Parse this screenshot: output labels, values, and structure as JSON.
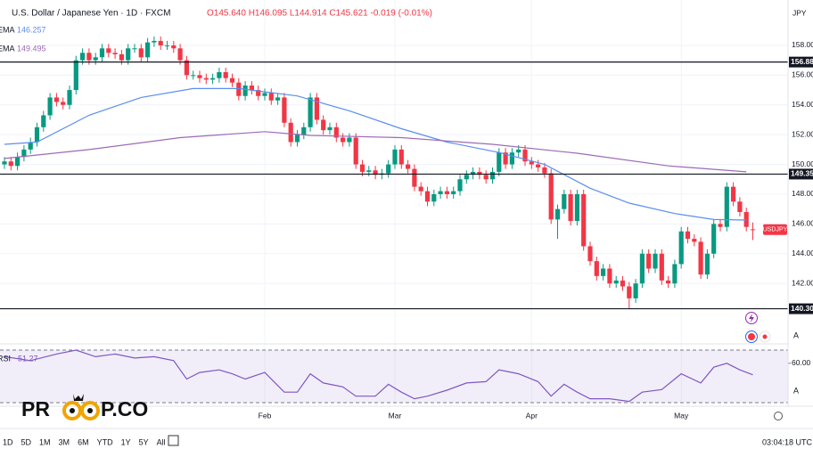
{
  "header": {
    "title": "U.S. Dollar / Japanese Yen · 1D · FXCM",
    "ohlc": "O145.640 H146.095 L144.914 C145.621 -0.019 (-0.01%)",
    "currency": "JPY"
  },
  "logo": {
    "left": "PR",
    "right": "P.CO"
  },
  "auto_label": "A",
  "toolbar": {
    "ranges": [
      "1D",
      "5D",
      "1M",
      "3M",
      "6M",
      "YTD",
      "1Y",
      "5Y",
      "All"
    ],
    "time": "03:04:18 UTC"
  },
  "chart_data": [
    {
      "type": "candlestick",
      "up_color": "#089981",
      "down_color": "#f23645",
      "categories": [
        null,
        null,
        null,
        null,
        null,
        null,
        null,
        null,
        null,
        null,
        null,
        null,
        null,
        null,
        null,
        null,
        null,
        null,
        null,
        null,
        null,
        null,
        null,
        null,
        null,
        null,
        null,
        null,
        null,
        null,
        null,
        null,
        null,
        null,
        null,
        null,
        null,
        null,
        null,
        null,
        "Feb",
        null,
        null,
        null,
        null,
        null,
        null,
        null,
        null,
        null,
        null,
        null,
        null,
        null,
        null,
        null,
        null,
        null,
        null,
        null,
        "Mar",
        null,
        null,
        null,
        null,
        null,
        null,
        null,
        null,
        null,
        null,
        null,
        null,
        null,
        null,
        null,
        null,
        null,
        null,
        null,
        null,
        "Apr",
        null,
        null,
        null,
        null,
        null,
        null,
        null,
        null,
        null,
        null,
        null,
        null,
        null,
        null,
        null,
        null,
        null,
        null,
        null,
        null,
        null,
        null,
        "May",
        null,
        null,
        null,
        null,
        null,
        null,
        null,
        null,
        null,
        null,
        null
      ],
      "open": [
        150.0,
        150.2,
        149.9,
        150.5,
        151.0,
        151.5,
        152.5,
        153.3,
        154.5,
        154.2,
        154.0,
        155.0,
        157.0,
        157.5,
        157.0,
        157.2,
        157.8,
        157.5,
        157.4,
        157.0,
        157.8,
        157.8,
        157.2,
        158.2,
        158.3,
        158.0,
        158.0,
        157.8,
        157.0,
        156.0,
        156.0,
        155.8,
        155.7,
        155.8,
        156.2,
        155.8,
        155.5,
        154.6,
        155.3,
        155.0,
        154.6,
        154.8,
        154.3,
        154.5,
        152.8,
        151.5,
        152.0,
        152.5,
        154.5,
        153.0,
        152.3,
        152.5,
        151.8,
        151.5,
        151.8,
        150.0,
        149.5,
        149.6,
        149.3,
        149.4,
        150.0,
        151.0,
        150.0,
        149.7,
        148.5,
        148.2,
        147.5,
        148.0,
        148.2,
        148.0,
        148.2,
        149.0,
        149.3,
        149.5,
        149.3,
        149.0,
        149.5,
        150.8,
        150.0,
        150.8,
        151.0,
        150.2,
        150.0,
        149.8,
        149.4,
        146.3,
        147.0,
        148.0,
        146.2,
        148.0,
        144.5,
        143.5,
        142.5,
        143.0,
        142.0,
        142.2,
        141.8,
        141.0,
        142.0,
        144.0,
        143.0,
        144.0,
        142.2,
        142.0,
        143.3,
        145.5,
        145.0,
        144.8,
        142.6,
        144.0,
        146.0,
        145.8,
        148.5,
        147.5,
        146.8,
        145.64
      ],
      "high": [
        150.5,
        150.5,
        150.8,
        151.3,
        151.8,
        152.8,
        153.6,
        154.8,
        154.8,
        154.5,
        155.3,
        157.3,
        157.8,
        157.8,
        157.5,
        158.1,
        158.1,
        157.8,
        157.7,
        158.1,
        158.1,
        158.1,
        158.5,
        158.6,
        158.6,
        158.3,
        158.3,
        158.1,
        157.3,
        156.3,
        156.3,
        156.1,
        156.1,
        156.5,
        156.5,
        156.1,
        155.8,
        155.6,
        155.6,
        155.3,
        155.1,
        155.1,
        154.8,
        154.8,
        153.1,
        152.3,
        152.8,
        154.8,
        154.8,
        153.3,
        152.8,
        152.8,
        152.1,
        152.1,
        152.1,
        150.3,
        149.9,
        149.9,
        149.7,
        150.3,
        151.3,
        151.3,
        150.3,
        150.0,
        148.8,
        148.5,
        148.3,
        148.5,
        148.5,
        148.5,
        149.3,
        149.6,
        149.8,
        149.8,
        149.6,
        149.8,
        151.1,
        151.1,
        151.1,
        151.3,
        151.3,
        150.5,
        150.3,
        150.1,
        149.7,
        147.3,
        148.3,
        148.3,
        148.3,
        148.3,
        144.8,
        143.8,
        143.3,
        143.3,
        142.5,
        142.5,
        142.1,
        142.3,
        144.3,
        144.3,
        144.3,
        144.3,
        142.5,
        143.6,
        145.8,
        145.8,
        145.3,
        145.1,
        144.3,
        146.3,
        146.3,
        148.8,
        148.8,
        147.8,
        147.1,
        146.095
      ],
      "low": [
        149.7,
        149.6,
        149.6,
        150.2,
        150.7,
        151.2,
        152.2,
        153.0,
        153.9,
        153.7,
        153.7,
        154.7,
        156.7,
        156.7,
        156.7,
        156.9,
        157.2,
        157.1,
        156.7,
        156.7,
        157.5,
        156.9,
        156.9,
        157.9,
        157.7,
        157.7,
        157.5,
        156.7,
        155.7,
        155.7,
        155.5,
        155.4,
        155.4,
        155.5,
        155.5,
        155.2,
        154.3,
        154.3,
        154.7,
        154.3,
        154.3,
        154.0,
        154.0,
        152.5,
        151.2,
        151.2,
        151.7,
        152.2,
        152.7,
        152.0,
        152.0,
        151.5,
        151.2,
        151.2,
        149.7,
        149.2,
        149.2,
        149.0,
        149.0,
        149.1,
        149.7,
        149.7,
        149.4,
        148.2,
        147.9,
        147.2,
        147.2,
        147.7,
        147.7,
        147.7,
        147.9,
        148.7,
        149.0,
        149.0,
        148.7,
        148.7,
        149.2,
        149.7,
        149.7,
        150.5,
        149.9,
        149.7,
        149.5,
        149.1,
        146.0,
        145.0,
        146.7,
        145.9,
        145.9,
        144.2,
        143.2,
        142.2,
        142.2,
        141.7,
        141.7,
        141.5,
        140.3,
        140.7,
        141.7,
        142.7,
        142.7,
        141.9,
        141.7,
        141.7,
        143.0,
        144.7,
        144.5,
        142.3,
        142.3,
        143.7,
        145.5,
        145.5,
        147.2,
        146.5,
        145.5,
        144.914
      ],
      "close": [
        150.2,
        149.9,
        150.5,
        151.0,
        151.5,
        152.5,
        153.3,
        154.5,
        154.2,
        154.0,
        155.0,
        157.0,
        157.5,
        157.0,
        157.2,
        157.8,
        157.5,
        157.4,
        157.0,
        157.8,
        157.8,
        157.2,
        158.2,
        158.3,
        158.0,
        158.0,
        157.8,
        157.0,
        156.0,
        156.0,
        155.8,
        155.7,
        155.8,
        156.2,
        155.8,
        155.5,
        154.6,
        155.3,
        155.0,
        154.6,
        154.8,
        154.3,
        154.5,
        152.8,
        151.5,
        152.0,
        152.5,
        154.5,
        153.0,
        152.3,
        152.5,
        151.8,
        151.5,
        151.8,
        150.0,
        149.5,
        149.6,
        149.3,
        149.4,
        150.0,
        151.0,
        150.0,
        149.7,
        148.5,
        148.2,
        147.5,
        148.0,
        148.2,
        148.0,
        148.2,
        149.0,
        149.3,
        149.5,
        149.3,
        149.0,
        149.5,
        150.8,
        150.0,
        150.8,
        151.0,
        150.2,
        150.0,
        149.8,
        149.4,
        146.3,
        147.0,
        148.0,
        146.2,
        148.0,
        144.5,
        143.5,
        142.5,
        143.0,
        142.0,
        142.2,
        141.8,
        141.0,
        142.0,
        144.0,
        143.0,
        144.0,
        142.2,
        142.0,
        143.3,
        145.5,
        145.0,
        144.8,
        142.6,
        144.0,
        146.0,
        145.8,
        148.5,
        147.5,
        146.8,
        145.8,
        145.621
      ],
      "series": [
        {
          "name": "EMA",
          "legend_value": 146.257,
          "color": "#5b8def",
          "x": [
            0,
            5,
            13,
            21,
            29,
            36,
            45,
            53,
            61,
            68,
            76,
            83,
            90,
            96,
            103,
            109,
            114
          ],
          "values": [
            151.35,
            151.5,
            153.3,
            154.5,
            155.1,
            155.1,
            154.6,
            153.6,
            152.4,
            151.5,
            150.8,
            150.0,
            148.4,
            147.4,
            146.7,
            146.3,
            146.26
          ]
        },
        {
          "name": "EMA",
          "legend_value": 149.495,
          "color": "#9c6ab5",
          "x": [
            0,
            13,
            27,
            40,
            47,
            61,
            75,
            88,
            102,
            114
          ],
          "values": [
            150.4,
            151.0,
            151.8,
            152.2,
            151.95,
            151.8,
            151.35,
            150.75,
            149.9,
            149.5
          ]
        }
      ],
      "levels": [
        156.88,
        149.35,
        {
          "value": 140.3,
          "label": "140.30"
        }
      ],
      "last_label": "USDJPY",
      "ylim": [
        138,
        161.05
      ],
      "yticks": [
        {
          "value": 142,
          "label": "142.00"
        },
        {
          "value": 144,
          "label": "144.00"
        },
        {
          "value": 146,
          "label": "146.00"
        },
        {
          "value": 148,
          "label": "148.00"
        },
        {
          "value": 150,
          "label": "150.00"
        },
        {
          "value": 152,
          "label": "152.00"
        },
        {
          "value": 154,
          "label": "154.00"
        },
        {
          "value": 156,
          "label": "156.00"
        },
        {
          "value": 158,
          "label": "158.00"
        }
      ],
      "grid": true
    },
    {
      "type": "line",
      "name": "RSI",
      "legend_value": 51.27,
      "color": "#7e57c2",
      "x": [
        0,
        4,
        8,
        11,
        14,
        17,
        20,
        23,
        26,
        28,
        30,
        33,
        35,
        37,
        40,
        43,
        45,
        47,
        49,
        52,
        54,
        57,
        59,
        61,
        63,
        65,
        68,
        71,
        74,
        76,
        79,
        82,
        84,
        86,
        88,
        90,
        93,
        96,
        98,
        101,
        104,
        107,
        109,
        111,
        113,
        115
      ],
      "values": [
        65,
        62,
        67,
        70,
        65,
        67,
        64,
        65,
        62,
        48,
        53,
        55,
        52,
        48,
        53,
        38,
        38,
        52,
        45,
        42,
        35,
        35,
        44,
        38,
        33,
        35,
        39.5,
        45,
        46,
        55,
        52,
        46,
        35,
        44,
        38,
        33,
        33,
        31,
        38,
        40,
        52,
        45,
        57,
        60,
        55,
        51.27
      ],
      "bands": [
        30,
        70
      ],
      "ylim": [
        28,
        73.4
      ],
      "yticks": [
        {
          "value": 60,
          "label": "60.00"
        }
      ]
    }
  ]
}
